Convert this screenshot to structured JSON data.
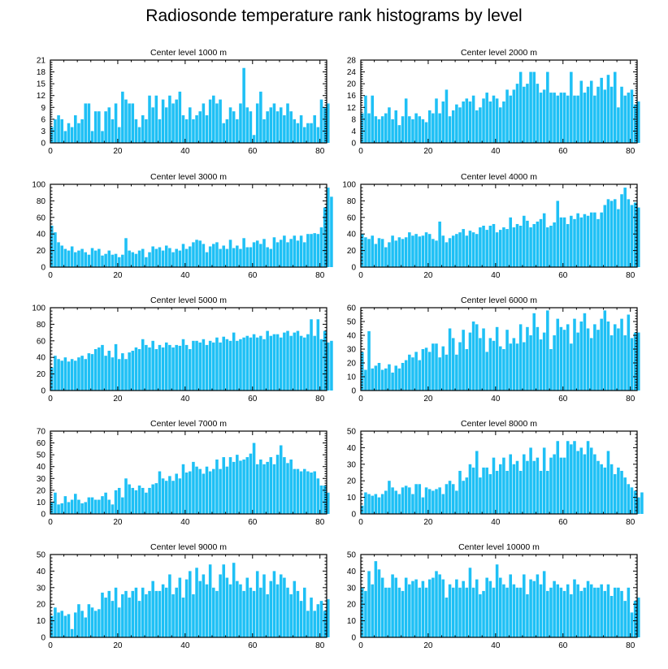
{
  "title": "Radiosonde temperature rank histograms by level",
  "colors": {
    "bar": "#1ec0f5",
    "bar_edge": "#ffffff",
    "axis": "#000000"
  },
  "chart_data": [
    {
      "type": "bar",
      "title": "Center level 1000 m",
      "xlim": [
        0,
        82
      ],
      "ylim": [
        0,
        21
      ],
      "xticks": [
        0,
        20,
        40,
        60,
        80
      ],
      "yticks": [
        0,
        3,
        6,
        9,
        12,
        15,
        18,
        21
      ],
      "values": [
        4,
        6,
        7,
        6,
        3,
        5,
        4,
        7,
        5,
        6,
        10,
        10,
        3,
        8,
        8,
        3,
        8,
        9,
        6,
        10,
        4,
        13,
        11,
        10,
        10,
        6,
        4,
        7,
        6,
        12,
        9,
        12,
        6,
        11,
        9,
        12,
        10,
        11,
        13,
        7,
        6,
        9,
        6,
        7,
        8,
        10,
        7,
        11,
        12,
        10,
        11,
        5,
        6,
        9,
        8,
        6,
        10,
        19,
        9,
        8,
        2,
        10,
        13,
        6,
        8,
        9,
        10,
        8,
        9,
        7,
        10,
        8,
        6,
        5,
        7,
        4,
        5,
        5,
        7,
        4,
        11,
        9,
        10
      ]
    },
    {
      "type": "bar",
      "title": "Center level 2000 m",
      "xlim": [
        0,
        82
      ],
      "ylim": [
        0,
        28
      ],
      "xticks": [
        0,
        20,
        40,
        60,
        80
      ],
      "yticks": [
        0,
        4,
        8,
        12,
        16,
        20,
        24,
        28
      ],
      "values": [
        10,
        16,
        10,
        16,
        9,
        8,
        9,
        10,
        12,
        8,
        11,
        6,
        9,
        15,
        9,
        8,
        10,
        9,
        8,
        7,
        11,
        10,
        15,
        10,
        14,
        18,
        9,
        11,
        13,
        12,
        14,
        15,
        14,
        16,
        11,
        12,
        15,
        17,
        14,
        16,
        15,
        12,
        14,
        18,
        16,
        18,
        20,
        24,
        19,
        20,
        24,
        24,
        20,
        17,
        18,
        24,
        17,
        17,
        16,
        17,
        17,
        16,
        24,
        16,
        16,
        21,
        17,
        19,
        21,
        16,
        19,
        22,
        18,
        23,
        19,
        24,
        12,
        19,
        16,
        17,
        18,
        13,
        14
      ]
    },
    {
      "type": "bar",
      "title": "Center level 3000 m",
      "xlim": [
        0,
        82
      ],
      "ylim": [
        0,
        100
      ],
      "xticks": [
        0,
        20,
        40,
        60,
        80
      ],
      "yticks": [
        0,
        20,
        40,
        60,
        80,
        100
      ],
      "values": [
        50,
        42,
        30,
        26,
        22,
        20,
        25,
        18,
        20,
        22,
        18,
        15,
        23,
        20,
        22,
        14,
        16,
        20,
        15,
        16,
        12,
        15,
        35,
        20,
        18,
        16,
        20,
        22,
        12,
        18,
        25,
        22,
        24,
        20,
        26,
        23,
        18,
        22,
        20,
        28,
        22,
        25,
        30,
        33,
        32,
        28,
        18,
        25,
        28,
        30,
        22,
        26,
        22,
        33,
        23,
        26,
        22,
        35,
        24,
        24,
        30,
        32,
        28,
        34,
        24,
        22,
        36,
        30,
        33,
        38,
        30,
        34,
        38,
        32,
        38,
        30,
        40,
        40,
        41,
        40,
        48,
        72,
        96,
        85
      ]
    },
    {
      "type": "bar",
      "title": "Center level 4000 m",
      "xlim": [
        0,
        82
      ],
      "ylim": [
        0,
        100
      ],
      "xticks": [
        0,
        20,
        40,
        60,
        80
      ],
      "yticks": [
        0,
        20,
        40,
        60,
        80,
        100
      ],
      "values": [
        40,
        36,
        34,
        38,
        28,
        35,
        34,
        24,
        30,
        38,
        32,
        36,
        34,
        36,
        42,
        38,
        40,
        37,
        38,
        42,
        40,
        34,
        32,
        55,
        38,
        30,
        35,
        38,
        40,
        42,
        46,
        38,
        44,
        42,
        40,
        48,
        50,
        45,
        50,
        52,
        42,
        45,
        48,
        46,
        60,
        48,
        52,
        50,
        62,
        56,
        48,
        52,
        55,
        58,
        65,
        48,
        50,
        54,
        80,
        60,
        60,
        52,
        62,
        58,
        65,
        60,
        64,
        62,
        66,
        66,
        58,
        66,
        75,
        82,
        80,
        82,
        70,
        88,
        96,
        82,
        75,
        78,
        72
      ]
    },
    {
      "type": "bar",
      "title": "Center level 5000 m",
      "xlim": [
        0,
        82
      ],
      "ylim": [
        0,
        100
      ],
      "xticks": [
        0,
        20,
        40,
        60,
        80
      ],
      "yticks": [
        0,
        20,
        40,
        60,
        80,
        100
      ],
      "values": [
        28,
        42,
        38,
        36,
        40,
        35,
        38,
        36,
        40,
        42,
        38,
        45,
        44,
        50,
        52,
        55,
        42,
        48,
        40,
        56,
        38,
        45,
        38,
        46,
        48,
        52,
        50,
        62,
        55,
        52,
        60,
        50,
        55,
        52,
        58,
        55,
        52,
        55,
        54,
        62,
        55,
        50,
        60,
        60,
        58,
        62,
        55,
        60,
        58,
        64,
        58,
        65,
        62,
        60,
        70,
        60,
        62,
        64,
        66,
        64,
        68,
        64,
        66,
        62,
        72,
        66,
        68,
        68,
        64,
        70,
        72,
        66,
        70,
        72,
        66,
        64,
        68,
        86,
        66,
        86,
        62,
        72,
        58,
        60
      ]
    },
    {
      "type": "bar",
      "title": "Center level 6000 m",
      "xlim": [
        0,
        82
      ],
      "ylim": [
        0,
        60
      ],
      "xticks": [
        0,
        20,
        40,
        60,
        80
      ],
      "yticks": [
        0,
        10,
        20,
        30,
        40,
        50,
        60
      ],
      "values": [
        28,
        15,
        43,
        16,
        18,
        20,
        15,
        16,
        19,
        13,
        18,
        16,
        20,
        22,
        26,
        24,
        28,
        22,
        30,
        31,
        28,
        34,
        34,
        24,
        32,
        26,
        45,
        38,
        26,
        35,
        44,
        30,
        42,
        50,
        48,
        38,
        45,
        28,
        38,
        36,
        46,
        32,
        30,
        44,
        34,
        38,
        34,
        48,
        35,
        46,
        40,
        56,
        46,
        37,
        42,
        58,
        30,
        40,
        52,
        46,
        44,
        48,
        34,
        52,
        42,
        50,
        56,
        45,
        38,
        48,
        44,
        52,
        58,
        50,
        40,
        48,
        45,
        52,
        40,
        55,
        38,
        42,
        42
      ]
    },
    {
      "type": "bar",
      "title": "Center level 7000 m",
      "xlim": [
        0,
        82
      ],
      "ylim": [
        0,
        70
      ],
      "xticks": [
        0,
        20,
        40,
        60,
        80
      ],
      "yticks": [
        0,
        10,
        20,
        30,
        40,
        50,
        60,
        70
      ],
      "values": [
        10,
        18,
        8,
        9,
        15,
        10,
        12,
        17,
        12,
        9,
        10,
        14,
        14,
        12,
        12,
        15,
        18,
        12,
        8,
        20,
        22,
        14,
        30,
        25,
        22,
        20,
        24,
        22,
        18,
        22,
        25,
        26,
        36,
        30,
        28,
        32,
        28,
        34,
        30,
        42,
        35,
        36,
        44,
        40,
        38,
        34,
        40,
        36,
        38,
        46,
        38,
        48,
        40,
        48,
        44,
        50,
        45,
        46,
        48,
        51,
        60,
        42,
        46,
        42,
        44,
        48,
        42,
        50,
        58,
        48,
        43,
        46,
        38,
        38,
        36,
        38,
        36,
        35,
        36,
        30,
        24,
        24,
        18
      ]
    },
    {
      "type": "bar",
      "title": "Center level 8000 m",
      "xlim": [
        0,
        82
      ],
      "ylim": [
        0,
        50
      ],
      "xticks": [
        0,
        20,
        40,
        60,
        80
      ],
      "yticks": [
        0,
        10,
        20,
        30,
        40,
        50
      ],
      "values": [
        5,
        13,
        12,
        11,
        12,
        10,
        12,
        14,
        20,
        16,
        14,
        12,
        16,
        17,
        16,
        12,
        18,
        18,
        10,
        16,
        15,
        14,
        15,
        16,
        12,
        18,
        20,
        18,
        14,
        26,
        20,
        22,
        30,
        28,
        38,
        22,
        28,
        28,
        24,
        34,
        26,
        30,
        34,
        26,
        36,
        30,
        32,
        26,
        36,
        32,
        40,
        32,
        34,
        26,
        40,
        26,
        34,
        36,
        44,
        34,
        34,
        44,
        42,
        44,
        38,
        40,
        36,
        44,
        40,
        36,
        32,
        30,
        28,
        38,
        30,
        24,
        28,
        26,
        22,
        18,
        16,
        14,
        10,
        13
      ]
    },
    {
      "type": "bar",
      "title": "Center level 9000 m",
      "xlim": [
        0,
        82
      ],
      "ylim": [
        0,
        50
      ],
      "xticks": [
        0,
        20,
        40,
        60,
        80
      ],
      "yticks": [
        0,
        10,
        20,
        30,
        40,
        50
      ],
      "values": [
        13,
        18,
        15,
        16,
        13,
        14,
        5,
        15,
        20,
        16,
        12,
        20,
        18,
        16,
        17,
        27,
        24,
        28,
        22,
        30,
        18,
        26,
        28,
        24,
        28,
        30,
        22,
        30,
        26,
        28,
        34,
        28,
        28,
        32,
        30,
        38,
        26,
        30,
        36,
        24,
        35,
        40,
        26,
        42,
        34,
        38,
        32,
        44,
        30,
        28,
        38,
        44,
        36,
        32,
        45,
        34,
        32,
        28,
        36,
        30,
        28,
        40,
        30,
        38,
        26,
        34,
        40,
        32,
        38,
        36,
        30,
        26,
        34,
        28,
        22,
        30,
        16,
        24,
        16,
        20,
        22,
        16,
        23
      ]
    },
    {
      "type": "bar",
      "title": "Center level 10000 m",
      "xlim": [
        0,
        82
      ],
      "ylim": [
        0,
        50
      ],
      "xticks": [
        0,
        20,
        40,
        60,
        80
      ],
      "yticks": [
        0,
        10,
        20,
        30,
        40,
        50
      ],
      "values": [
        30,
        28,
        40,
        32,
        46,
        41,
        36,
        30,
        30,
        38,
        36,
        30,
        28,
        36,
        32,
        34,
        35,
        30,
        34,
        30,
        35,
        36,
        40,
        38,
        35,
        24,
        32,
        30,
        35,
        30,
        34,
        30,
        42,
        30,
        35,
        26,
        28,
        36,
        34,
        30,
        44,
        36,
        32,
        30,
        38,
        32,
        30,
        30,
        38,
        26,
        35,
        34,
        38,
        32,
        40,
        28,
        30,
        34,
        32,
        30,
        28,
        32,
        26,
        35,
        32,
        28,
        30,
        34,
        32,
        30,
        30,
        32,
        28,
        32,
        25,
        30,
        30,
        28,
        22,
        30,
        15,
        22,
        24
      ]
    }
  ]
}
